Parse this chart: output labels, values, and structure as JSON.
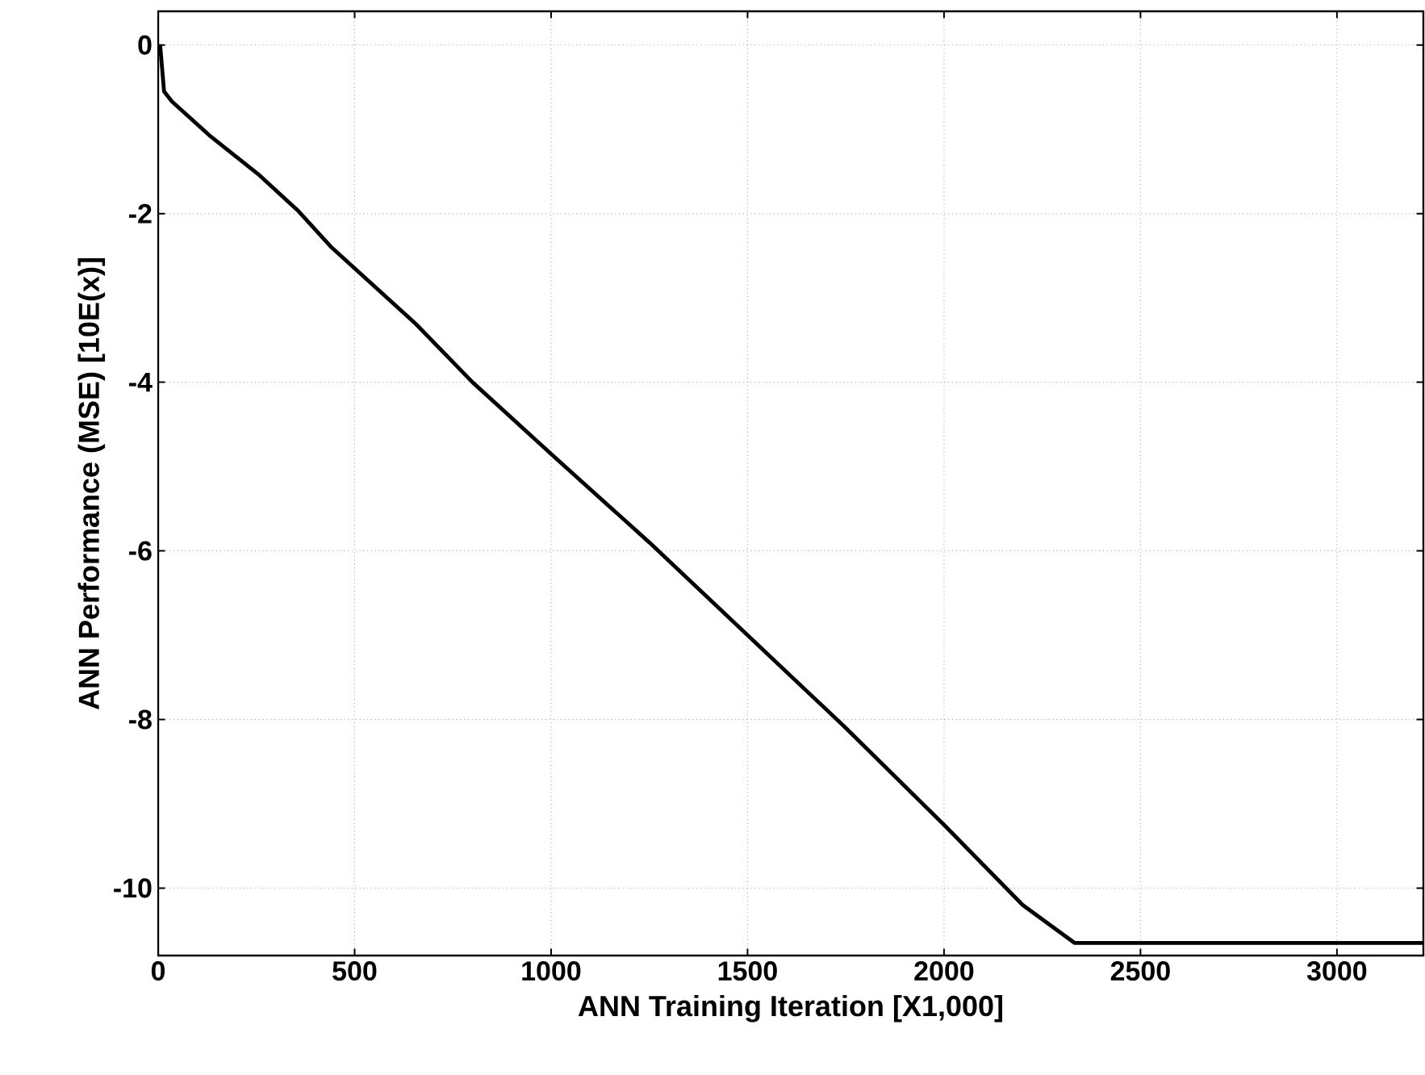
{
  "chart_data": {
    "type": "line",
    "xlabel": "ANN Training Iteration  [X1,000]",
    "ylabel": "ANN Performance  (MSE) [10E(x)]",
    "xlim": [
      0,
      3220
    ],
    "ylim": [
      -10.8,
      0.4
    ],
    "xticks": [
      0,
      500,
      1000,
      1500,
      2000,
      2500,
      3000
    ],
    "yticks": [
      -10,
      -8,
      -6,
      -4,
      -2,
      0
    ],
    "grid": true,
    "line_style": "solid",
    "marker": "none",
    "series": [
      {
        "color": "#000000",
        "x": [
          5,
          15,
          35,
          130,
          254,
          357,
          439,
          656,
          800,
          1000,
          1250,
          1500,
          1750,
          2000,
          2200,
          2332,
          3220
        ],
        "values": [
          0,
          -0.55,
          -0.67,
          -1.07,
          -1.53,
          -1.97,
          -2.39,
          -3.31,
          -4.0,
          -4.85,
          -5.9,
          -7.0,
          -8.1,
          -9.25,
          -10.2,
          -10.65,
          -10.65
        ]
      }
    ]
  }
}
